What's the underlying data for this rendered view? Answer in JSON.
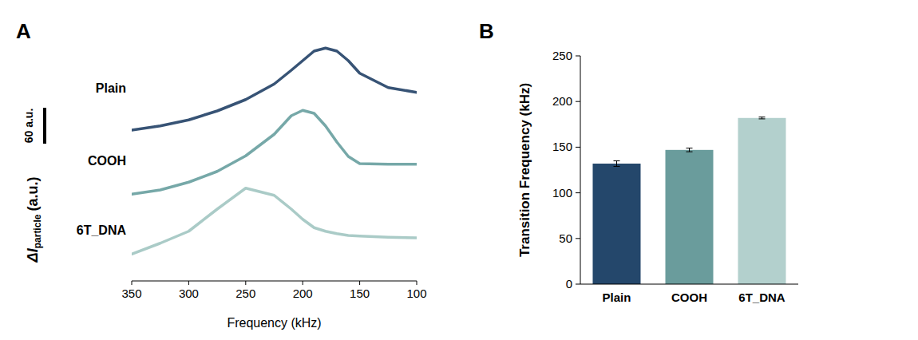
{
  "chart_data": [
    {
      "type": "line",
      "panel": "A",
      "xlabel": "Frequency (kHz)",
      "ylabel": {
        "text": "ΔI",
        "subscript": "particle",
        "unit": "(a.u.)"
      },
      "x": [
        350,
        325,
        300,
        275,
        250,
        225,
        210,
        200,
        190,
        180,
        170,
        160,
        150,
        125,
        100
      ],
      "xlim": [
        350,
        100
      ],
      "xticks": [
        350,
        300,
        250,
        200,
        150,
        100
      ],
      "ylim": [
        0,
        400
      ],
      "tick_labels": "x",
      "scale_bar": {
        "value": 60,
        "label": "60 a.u."
      },
      "series": [
        {
          "name": "Plain",
          "color": "#2c4a6e",
          "values": [
            252,
            259,
            269,
            284,
            303,
            329,
            352,
            368,
            384,
            389,
            384,
            368,
            347,
            323,
            315
          ]
        },
        {
          "name": "COOH",
          "color": "#6fa3a3",
          "values": [
            145,
            152,
            165,
            183,
            209,
            245,
            276,
            285,
            280,
            259,
            232,
            208,
            196,
            195,
            195
          ]
        },
        {
          "name": "6T_DNA",
          "color": "#a5c8c4",
          "values": [
            45,
            63,
            83,
            120,
            155,
            143,
            120,
            103,
            89,
            83,
            79,
            76,
            75,
            73,
            72
          ]
        }
      ]
    },
    {
      "type": "bar",
      "panel": "B",
      "ylabel": "Transition Frequency (kHz)",
      "categories": [
        "Plain",
        "COOH",
        "6T_DNA"
      ],
      "values": [
        132,
        147,
        182
      ],
      "errors": [
        3,
        2,
        1
      ],
      "colors": [
        "#24476b",
        "#6a9c9c",
        "#b3d0cd"
      ],
      "ylim": [
        0,
        250
      ],
      "yticks": [
        0,
        50,
        100,
        150,
        200,
        250
      ]
    }
  ]
}
